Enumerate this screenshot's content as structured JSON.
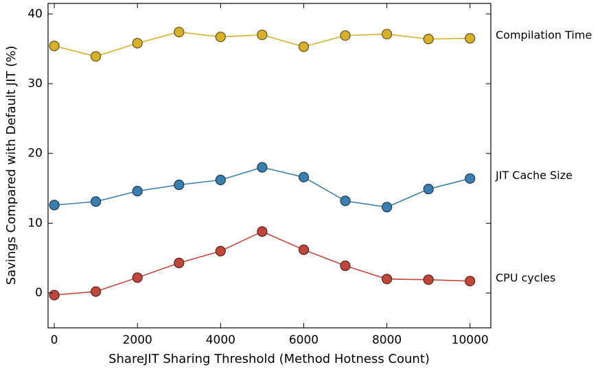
{
  "chart_data": {
    "type": "line",
    "xlabel": "ShareJIT Sharing Threshold (Method Hotness Count)",
    "ylabel": "Savings Compared with Default JIT (%)",
    "xlim": [
      -150,
      10500
    ],
    "ylim": [
      -5,
      41.5
    ],
    "xticks": [
      0,
      2000,
      4000,
      6000,
      8000,
      10000
    ],
    "yticks": [
      0,
      10,
      20,
      30,
      40
    ],
    "x": [
      0,
      1000,
      2000,
      3000,
      4000,
      5000,
      6000,
      7000,
      8000,
      9000,
      10000
    ],
    "grid": false,
    "legend": "direct labels at right of plot",
    "series": [
      {
        "name": "Compilation Time",
        "color": "#d7b12c",
        "values": [
          35.4,
          33.9,
          35.8,
          37.4,
          36.7,
          37.0,
          35.3,
          36.9,
          37.1,
          36.4,
          36.5
        ]
      },
      {
        "name": "JIT Cache Size",
        "color": "#3a7fb0",
        "values": [
          12.6,
          13.1,
          14.6,
          15.5,
          16.2,
          18.0,
          16.6,
          13.2,
          12.3,
          14.9,
          16.4
        ]
      },
      {
        "name": "CPU cycles",
        "color": "#c0473b",
        "values": [
          -0.3,
          0.2,
          2.2,
          4.3,
          6.0,
          8.8,
          6.2,
          3.9,
          2.0,
          1.9,
          1.7
        ]
      }
    ]
  }
}
